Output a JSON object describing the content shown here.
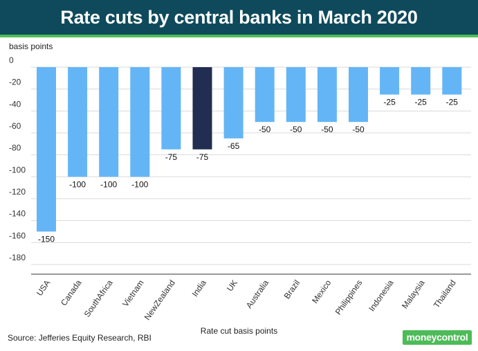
{
  "header": {
    "title": "Rate cuts by central banks in March 2020"
  },
  "source": "Source: Jefferies Equity Research, RBI",
  "logo": {
    "text": "moneycontrol"
  },
  "colors": {
    "header_bg": "#0e4a5c",
    "accent": "#4dbb57",
    "bar": "#64b5f6",
    "highlight": "#222d52"
  },
  "chart_data": {
    "type": "bar",
    "title": "Rate cuts by central banks in March 2020",
    "ylabel": "basis points",
    "xlabel": "Rate cut basis points",
    "categories": [
      "USA",
      "Canada",
      "SouthAfrica",
      "Vietnam",
      "NewZealand",
      "India",
      "UK",
      "Australia",
      "Brazil",
      "Mexico",
      "Philippines",
      "Indonesia",
      "Malaysia",
      "Thailand"
    ],
    "values": [
      -150,
      -100,
      -100,
      -100,
      -75,
      -75,
      -65,
      -50,
      -50,
      -50,
      -50,
      -25,
      -25,
      -25
    ],
    "highlight": "India",
    "ylim": [
      -180,
      0
    ],
    "yticks": [
      0,
      -20,
      -40,
      -60,
      -80,
      -100,
      -120,
      -140,
      -160,
      -180
    ],
    "grid": true
  }
}
